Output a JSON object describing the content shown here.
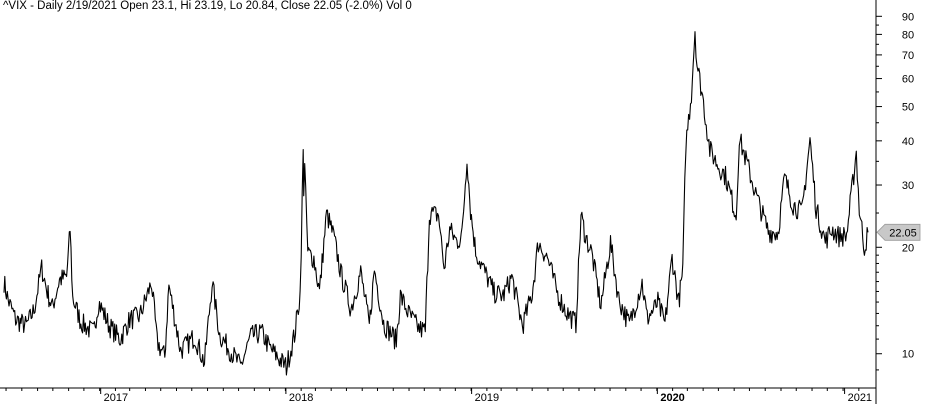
{
  "header": {
    "text": "^VIX - Daily 2/19/2021 Open 23.1, Hi 23.19, Lo 20.84, Close 22.05 (-2.0%) Vol 0"
  },
  "colors": {
    "price_line": "#000000",
    "axis": "#000000",
    "last_price_badge": "#c8c8c8",
    "background": "#ffffff"
  },
  "chart_data": {
    "type": "line",
    "title": "",
    "symbol": "^VIX",
    "scale": "log",
    "ylim": [
      8,
      95
    ],
    "y_ticks": [
      10,
      20,
      30,
      40,
      50,
      60,
      70,
      80,
      90
    ],
    "x_ticks": [
      {
        "label": "2017",
        "date": "2017-01-03",
        "bold": false
      },
      {
        "label": "2018",
        "date": "2018-01-02",
        "bold": false
      },
      {
        "label": "2019",
        "date": "2019-01-02",
        "bold": false
      },
      {
        "label": "2020",
        "date": "2020-01-02",
        "bold": true
      },
      {
        "label": "2021",
        "date": "2021-01-04",
        "bold": false
      }
    ],
    "xlim": [
      "2016-06-27",
      "2021-02-19"
    ],
    "last_value": "22.05",
    "series": [
      {
        "values": [
          [
            "2016-06-27",
            16.0
          ],
          [
            "2016-07-05",
            14.2
          ],
          [
            "2016-07-20",
            12.5
          ],
          [
            "2016-08-10",
            12.0
          ],
          [
            "2016-08-25",
            13.3
          ],
          [
            "2016-09-09",
            17.5
          ],
          [
            "2016-09-20",
            15.0
          ],
          [
            "2016-09-30",
            13.5
          ],
          [
            "2016-10-14",
            16.2
          ],
          [
            "2016-10-28",
            16.5
          ],
          [
            "2016-11-04",
            22.5
          ],
          [
            "2016-11-09",
            14.4
          ],
          [
            "2016-11-25",
            12.3
          ],
          [
            "2016-12-09",
            11.8
          ],
          [
            "2016-12-20",
            11.5
          ],
          [
            "2016-12-30",
            14.0
          ],
          [
            "2017-01-20",
            12.0
          ],
          [
            "2017-02-10",
            11.0
          ],
          [
            "2017-03-01",
            12.5
          ],
          [
            "2017-03-21",
            12.8
          ],
          [
            "2017-04-13",
            15.9
          ],
          [
            "2017-04-24",
            10.8
          ],
          [
            "2017-05-09",
            9.8
          ],
          [
            "2017-05-17",
            15.6
          ],
          [
            "2017-06-09",
            10.2
          ],
          [
            "2017-07-07",
            11.2
          ],
          [
            "2017-07-26",
            9.4
          ],
          [
            "2017-08-10",
            16.0
          ],
          [
            "2017-08-25",
            11.3
          ],
          [
            "2017-09-15",
            10.2
          ],
          [
            "2017-10-05",
            9.2
          ],
          [
            "2017-10-25",
            11.2
          ],
          [
            "2017-11-15",
            11.5
          ],
          [
            "2017-12-01",
            10.4
          ],
          [
            "2017-12-22",
            9.6
          ],
          [
            "2018-01-03",
            9.2
          ],
          [
            "2018-01-19",
            11.3
          ],
          [
            "2018-01-30",
            14.8
          ],
          [
            "2018-02-05",
            37.3
          ],
          [
            "2018-02-06",
            29.5
          ],
          [
            "2018-02-08",
            33.5
          ],
          [
            "2018-02-14",
            19.3
          ],
          [
            "2018-02-26",
            18.6
          ],
          [
            "2018-03-09",
            15.0
          ],
          [
            "2018-03-23",
            24.9
          ],
          [
            "2018-04-06",
            21.5
          ],
          [
            "2018-04-20",
            16.9
          ],
          [
            "2018-05-10",
            13.4
          ],
          [
            "2018-05-29",
            17.0
          ],
          [
            "2018-06-15",
            12.0
          ],
          [
            "2018-06-25",
            17.3
          ],
          [
            "2018-07-13",
            12.2
          ],
          [
            "2018-08-07",
            10.9
          ],
          [
            "2018-08-15",
            14.6
          ],
          [
            "2018-08-31",
            13.0
          ],
          [
            "2018-09-20",
            11.8
          ],
          [
            "2018-10-03",
            11.6
          ],
          [
            "2018-10-11",
            24.9
          ],
          [
            "2018-10-29",
            24.7
          ],
          [
            "2018-11-09",
            17.4
          ],
          [
            "2018-11-20",
            22.5
          ],
          [
            "2018-12-04",
            20.7
          ],
          [
            "2018-12-14",
            21.6
          ],
          [
            "2018-12-24",
            36.1
          ],
          [
            "2018-12-31",
            25.4
          ],
          [
            "2019-01-10",
            19.5
          ],
          [
            "2019-01-25",
            17.4
          ],
          [
            "2019-02-15",
            14.9
          ],
          [
            "2019-03-05",
            14.6
          ],
          [
            "2019-03-22",
            16.5
          ],
          [
            "2019-04-12",
            12.0
          ],
          [
            "2019-05-01",
            14.8
          ],
          [
            "2019-05-13",
            20.6
          ],
          [
            "2019-05-31",
            18.7
          ],
          [
            "2019-06-20",
            14.8
          ],
          [
            "2019-07-05",
            13.3
          ],
          [
            "2019-07-26",
            12.2
          ],
          [
            "2019-08-05",
            24.6
          ],
          [
            "2019-08-15",
            21.2
          ],
          [
            "2019-08-26",
            19.3
          ],
          [
            "2019-09-13",
            13.7
          ],
          [
            "2019-10-02",
            20.6
          ],
          [
            "2019-10-18",
            14.3
          ],
          [
            "2019-11-08",
            12.1
          ],
          [
            "2019-12-03",
            15.9
          ],
          [
            "2019-12-13",
            12.6
          ],
          [
            "2019-12-27",
            13.4
          ],
          [
            "2020-01-03",
            14.0
          ],
          [
            "2020-01-17",
            12.1
          ],
          [
            "2020-01-31",
            18.8
          ],
          [
            "2020-02-13",
            14.0
          ],
          [
            "2020-02-21",
            17.1
          ],
          [
            "2020-02-27",
            39.2
          ],
          [
            "2020-03-09",
            54.5
          ],
          [
            "2020-03-16",
            82.7
          ],
          [
            "2020-03-20",
            66.0
          ],
          [
            "2020-03-31",
            53.5
          ],
          [
            "2020-04-14",
            37.8
          ],
          [
            "2020-04-30",
            34.2
          ],
          [
            "2020-05-15",
            31.9
          ],
          [
            "2020-06-05",
            24.5
          ],
          [
            "2020-06-11",
            40.8
          ],
          [
            "2020-06-26",
            34.7
          ],
          [
            "2020-07-15",
            27.8
          ],
          [
            "2020-08-07",
            22.2
          ],
          [
            "2020-08-26",
            22.0
          ],
          [
            "2020-09-08",
            31.5
          ],
          [
            "2020-09-25",
            26.4
          ],
          [
            "2020-10-12",
            25.1
          ],
          [
            "2020-10-28",
            40.3
          ],
          [
            "2020-11-09",
            25.8
          ],
          [
            "2020-11-27",
            20.8
          ],
          [
            "2020-12-10",
            22.5
          ],
          [
            "2020-12-24",
            21.5
          ],
          [
            "2021-01-08",
            21.6
          ],
          [
            "2021-01-27",
            37.2
          ],
          [
            "2021-02-02",
            25.6
          ],
          [
            "2021-02-12",
            19.9
          ],
          [
            "2021-02-19",
            22.05
          ]
        ]
      }
    ]
  }
}
